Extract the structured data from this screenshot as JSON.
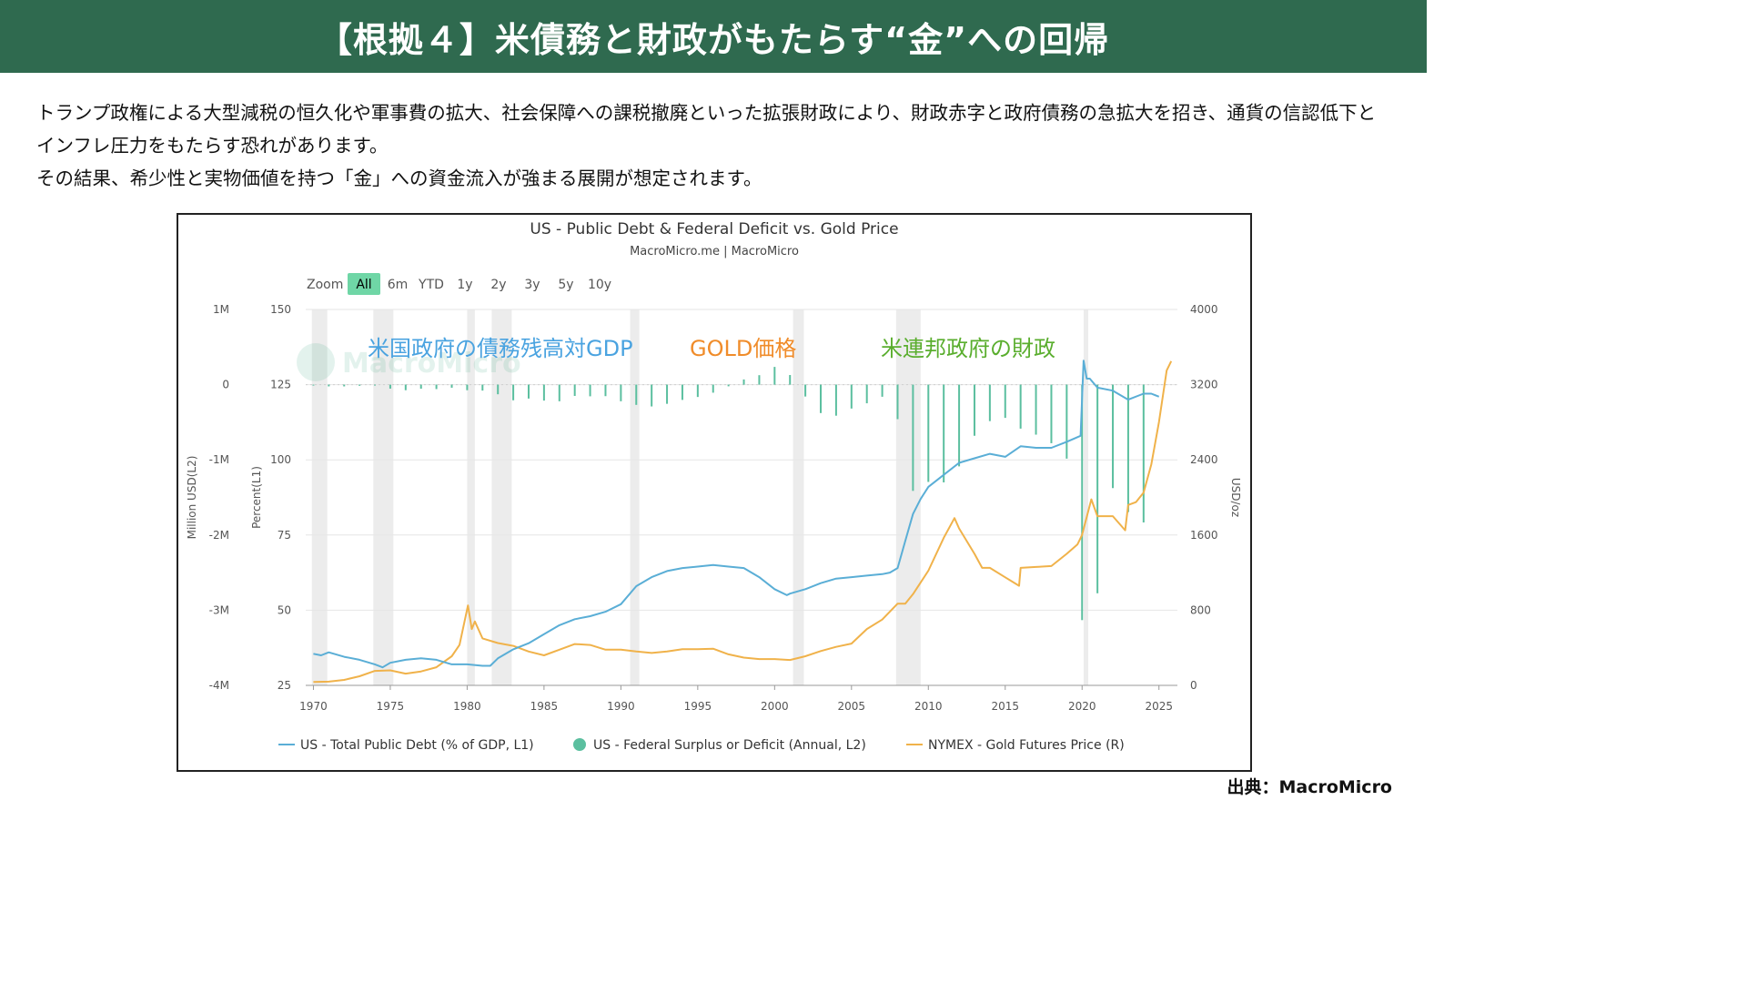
{
  "header": {
    "title": "【根拠４】米債務と財政がもたらす“金”への回帰"
  },
  "intro": {
    "line1": "トランプ政権による大型減税の恒久化や軍事費の拡大、社会保障への課税撤廃といった拡張財政により、財政赤字と政府債務の急拡大を招き、通貨の信認低下とインフレ圧力をもたらす恐れがあります。",
    "line2": "その結果、希少性と実物価値を持つ「金」への資金流入が強まる展開が想定されます。"
  },
  "source": "出典：MacroMicro",
  "colors": {
    "header_bg": "#2f6a4f",
    "debt": "#5aaed6",
    "deficit": "#5bbf9f",
    "gold": "#f0b24a",
    "annot_debt": "#4aa3e0",
    "annot_gold": "#f08c2a",
    "annot_fiscal": "#5aae2e",
    "recession": "#ececec",
    "zoom_active": "#6fd6a6"
  },
  "chart_data": {
    "type": "line",
    "title": "US - Public Debt & Federal Deficit vs. Gold Price",
    "subtitle": "MacroMicro.me | MacroMicro",
    "watermark": "MacroMicro",
    "zoom_label": "Zoom",
    "zoom_options": [
      "All",
      "6m",
      "YTD",
      "1y",
      "2y",
      "3y",
      "5y",
      "10y"
    ],
    "zoom_selected": "All",
    "x_ticks": [
      1970,
      1975,
      1980,
      1985,
      1990,
      1995,
      2000,
      2005,
      2010,
      2015,
      2020,
      2025
    ],
    "xlim": [
      1969.5,
      2026.2
    ],
    "axes": {
      "l2": {
        "label": "Million USD(L2)",
        "range": [
          -4000000,
          1000000
        ],
        "tick_labels": [
          "1M",
          "0",
          "-1M",
          "-2M",
          "-3M",
          "-4M"
        ],
        "tick_values": [
          1000000,
          0,
          -1000000,
          -2000000,
          -3000000,
          -4000000
        ]
      },
      "l1": {
        "label": "Percent(L1)",
        "range": [
          25,
          150
        ],
        "ticks": [
          150,
          125,
          100,
          75,
          50,
          25
        ]
      },
      "r": {
        "label": "USD/oz",
        "range": [
          0,
          4000
        ],
        "ticks": [
          4000,
          3200,
          2400,
          1600,
          800,
          0
        ]
      }
    },
    "recessions": [
      [
        1969.9,
        1970.9
      ],
      [
        1973.9,
        1975.2
      ],
      [
        1980.0,
        1980.5
      ],
      [
        1981.6,
        1982.9
      ],
      [
        1990.6,
        1991.2
      ],
      [
        2001.2,
        2001.9
      ],
      [
        2007.9,
        2009.5
      ],
      [
        2020.1,
        2020.4
      ]
    ],
    "annotations": [
      {
        "text": "米国政府の債務残高対GDP",
        "color_key": "annot_debt"
      },
      {
        "text": "GOLD価格",
        "color_key": "annot_gold"
      },
      {
        "text": "米連邦政府の財政",
        "color_key": "annot_fiscal"
      }
    ],
    "series": [
      {
        "name": "US - Total Public Debt (% of GDP, L1)",
        "axis": "l1",
        "kind": "line",
        "x": [
          1970,
          1970.5,
          1971,
          1972,
          1973,
          1974,
          1974.5,
          1975,
          1976,
          1977,
          1978,
          1979,
          1980,
          1981,
          1981.5,
          1982,
          1983,
          1984,
          1985,
          1986,
          1987,
          1988,
          1989,
          1990,
          1991,
          1992,
          1993,
          1994,
          1995,
          1996,
          1997,
          1998,
          1999,
          2000,
          2000.8,
          2001,
          2002,
          2003,
          2004,
          2005,
          2006,
          2007,
          2007.5,
          2008,
          2008.5,
          2009,
          2009.5,
          2010,
          2011,
          2012,
          2013,
          2014,
          2015,
          2016,
          2017,
          2018,
          2019,
          2019.9,
          2020.1,
          2020.3,
          2020.5,
          2021,
          2022,
          2023,
          2024,
          2024.5,
          2025
        ],
        "y": [
          35.5,
          35,
          36,
          34.5,
          33.5,
          32,
          31,
          32.5,
          33.5,
          34,
          33.5,
          32,
          32,
          31.5,
          31.5,
          34,
          37,
          39,
          42,
          45,
          47,
          48,
          49.5,
          52,
          58,
          61,
          63,
          64,
          64.5,
          65,
          64.5,
          64,
          61,
          57,
          55,
          55.5,
          57,
          59,
          60.5,
          61,
          61.5,
          62,
          62.5,
          64,
          73,
          82,
          87,
          91,
          95,
          99,
          100.5,
          102,
          101,
          104.5,
          104,
          104,
          106,
          108,
          133,
          127,
          127,
          124,
          123,
          120,
          122,
          122,
          121
        ]
      },
      {
        "name": "US - Federal Surplus or Deficit (Annual, L2)",
        "axis": "l2",
        "kind": "bar",
        "x": [
          1970,
          1971,
          1972,
          1973,
          1974,
          1975,
          1976,
          1977,
          1978,
          1979,
          1980,
          1981,
          1982,
          1983,
          1984,
          1985,
          1986,
          1987,
          1988,
          1989,
          1990,
          1991,
          1992,
          1993,
          1994,
          1995,
          1996,
          1997,
          1998,
          1999,
          2000,
          2001,
          2002,
          2003,
          2004,
          2005,
          2006,
          2007,
          2008,
          2009,
          2010,
          2011,
          2012,
          2013,
          2014,
          2015,
          2016,
          2017,
          2018,
          2019,
          2020,
          2021,
          2022,
          2023,
          2024
        ],
        "y": [
          -3000,
          -23000,
          -23000,
          -15000,
          -6000,
          -53000,
          -74000,
          -54000,
          -59000,
          -41000,
          -74000,
          -79000,
          -128000,
          -208000,
          -185000,
          -212000,
          -221000,
          -150000,
          -155000,
          -153000,
          -221000,
          -269000,
          -290000,
          -255000,
          -203000,
          -164000,
          -107000,
          -22000,
          69000,
          126000,
          236000,
          128000,
          -158000,
          -378000,
          -413000,
          -318000,
          -248000,
          -161000,
          -459000,
          -1413000,
          -1294000,
          -1300000,
          -1087000,
          -680000,
          -485000,
          -442000,
          -585000,
          -665000,
          -779000,
          -984000,
          -3132000,
          -2775000,
          -1376000,
          -1695000,
          -1833000
        ]
      },
      {
        "name": "NYMEX - Gold Futures Price (R)",
        "axis": "r",
        "kind": "line",
        "x": [
          1970,
          1971,
          1972,
          1973,
          1974,
          1975,
          1976,
          1977,
          1978,
          1979,
          1979.5,
          1980.05,
          1980.3,
          1980.5,
          1981,
          1982,
          1983,
          1984,
          1985,
          1986,
          1987,
          1988,
          1989,
          1990,
          1991,
          1992,
          1993,
          1994,
          1995,
          1996,
          1997,
          1998,
          1999,
          2000,
          2001,
          2002,
          2003,
          2004,
          2005,
          2006,
          2007,
          2008,
          2008.5,
          2009,
          2010,
          2011,
          2011.7,
          2012,
          2013,
          2013.5,
          2014,
          2015,
          2015.9,
          2016,
          2017,
          2018,
          2019,
          2019.7,
          2020,
          2020.6,
          2021,
          2022,
          2022.8,
          2023,
          2023.5,
          2024,
          2024.5,
          2025,
          2025.5,
          2025.8
        ],
        "y": [
          36,
          40,
          58,
          97,
          154,
          160,
          125,
          148,
          193,
          310,
          430,
          850,
          600,
          680,
          500,
          450,
          420,
          360,
          320,
          380,
          440,
          430,
          380,
          380,
          360,
          345,
          360,
          385,
          385,
          390,
          330,
          295,
          280,
          280,
          270,
          310,
          365,
          410,
          445,
          600,
          700,
          870,
          870,
          970,
          1220,
          1570,
          1780,
          1670,
          1400,
          1250,
          1250,
          1150,
          1060,
          1250,
          1260,
          1270,
          1400,
          1500,
          1600,
          1980,
          1800,
          1800,
          1650,
          1920,
          1950,
          2050,
          2350,
          2800,
          3350,
          3450
        ]
      }
    ]
  }
}
